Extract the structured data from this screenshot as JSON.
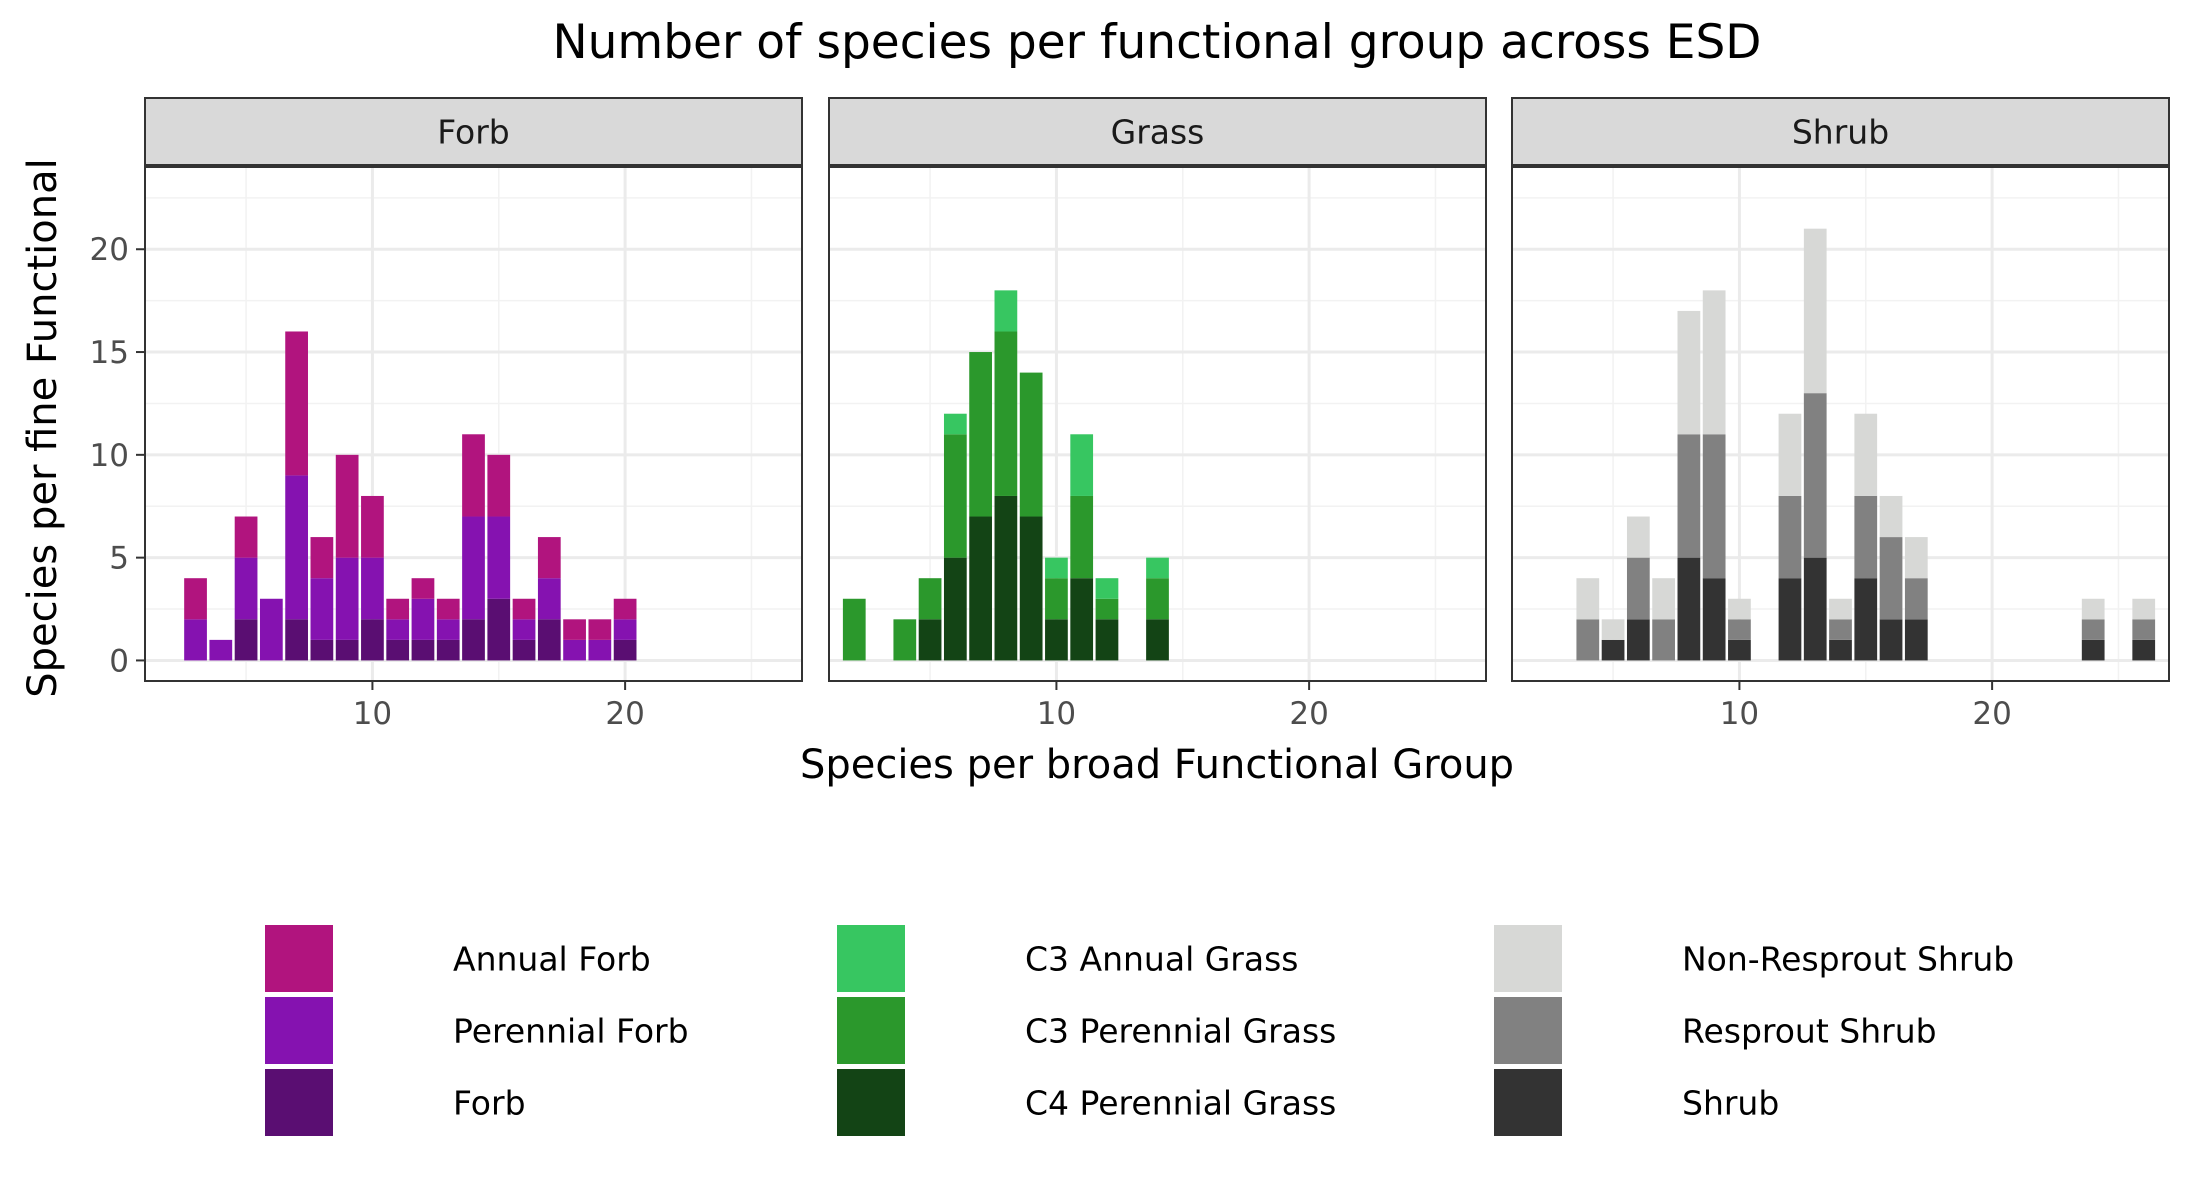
{
  "chart_data": {
    "type": "bar",
    "stacked": true,
    "title": "Number of species per functional group across ESD",
    "xlabel": "Species per broad Functional Group",
    "ylabel": "Species per fine Functional",
    "xlim": [
      1,
      27
    ],
    "ylim": [
      -1,
      24
    ],
    "x_ticks": [
      10,
      20
    ],
    "y_ticks": [
      0,
      5,
      10,
      15,
      20
    ],
    "grid": true,
    "legend_position": "bottom",
    "panels": [
      {
        "label": "Forb",
        "series": [
          {
            "name": "Forb",
            "color": "#5a0e72",
            "points": [
              [
                5,
                2
              ],
              [
                7,
                2
              ],
              [
                8,
                1
              ],
              [
                9,
                1
              ],
              [
                10,
                2
              ],
              [
                11,
                1
              ],
              [
                12,
                1
              ],
              [
                13,
                1
              ],
              [
                14,
                2
              ],
              [
                15,
                3
              ],
              [
                16,
                1
              ],
              [
                17,
                2
              ],
              [
                20,
                1
              ]
            ]
          },
          {
            "name": "Perennial Forb",
            "color": "#8512b0",
            "points": [
              [
                3,
                2
              ],
              [
                4,
                1
              ],
              [
                5,
                3
              ],
              [
                6,
                3
              ],
              [
                7,
                7
              ],
              [
                8,
                3
              ],
              [
                9,
                4
              ],
              [
                10,
                3
              ],
              [
                11,
                1
              ],
              [
                12,
                2
              ],
              [
                13,
                1
              ],
              [
                14,
                5
              ],
              [
                15,
                4
              ],
              [
                16,
                1
              ],
              [
                17,
                2
              ],
              [
                18,
                1
              ],
              [
                19,
                1
              ],
              [
                20,
                1
              ]
            ]
          },
          {
            "name": "Annual Forb",
            "color": "#b1147e",
            "points": [
              [
                3,
                2
              ],
              [
                5,
                2
              ],
              [
                7,
                7
              ],
              [
                8,
                2
              ],
              [
                9,
                5
              ],
              [
                10,
                3
              ],
              [
                11,
                1
              ],
              [
                12,
                1
              ],
              [
                13,
                1
              ],
              [
                14,
                4
              ],
              [
                15,
                3
              ],
              [
                16,
                1
              ],
              [
                17,
                2
              ],
              [
                18,
                1
              ],
              [
                19,
                1
              ],
              [
                20,
                1
              ]
            ]
          }
        ]
      },
      {
        "label": "Grass",
        "series": [
          {
            "name": "C4 Perennial Grass",
            "color": "#134415",
            "points": [
              [
                5,
                2
              ],
              [
                6,
                5
              ],
              [
                7,
                7
              ],
              [
                8,
                8
              ],
              [
                9,
                7
              ],
              [
                10,
                2
              ],
              [
                11,
                4
              ],
              [
                12,
                2
              ],
              [
                14,
                2
              ]
            ]
          },
          {
            "name": "C3 Perennial Grass",
            "color": "#2b982c",
            "points": [
              [
                2,
                3
              ],
              [
                4,
                2
              ],
              [
                5,
                2
              ],
              [
                6,
                6
              ],
              [
                7,
                8
              ],
              [
                8,
                8
              ],
              [
                9,
                7
              ],
              [
                10,
                2
              ],
              [
                11,
                4
              ],
              [
                12,
                1
              ],
              [
                14,
                2
              ]
            ]
          },
          {
            "name": "C3 Annual Grass",
            "color": "#37c661",
            "points": [
              [
                6,
                1
              ],
              [
                8,
                2
              ],
              [
                10,
                1
              ],
              [
                11,
                3
              ],
              [
                12,
                1
              ],
              [
                14,
                1
              ]
            ]
          }
        ]
      },
      {
        "label": "Shrub",
        "series": [
          {
            "name": "Shrub",
            "color": "#333333",
            "points": [
              [
                5,
                1
              ],
              [
                6,
                2
              ],
              [
                8,
                5
              ],
              [
                9,
                4
              ],
              [
                10,
                1
              ],
              [
                12,
                4
              ],
              [
                13,
                5
              ],
              [
                14,
                1
              ],
              [
                15,
                4
              ],
              [
                16,
                2
              ],
              [
                17,
                2
              ],
              [
                24,
                1
              ],
              [
                26,
                1
              ]
            ]
          },
          {
            "name": "Resprout Shrub",
            "color": "#818181",
            "points": [
              [
                4,
                2
              ],
              [
                6,
                3
              ],
              [
                7,
                2
              ],
              [
                8,
                6
              ],
              [
                9,
                7
              ],
              [
                10,
                1
              ],
              [
                12,
                4
              ],
              [
                13,
                8
              ],
              [
                14,
                1
              ],
              [
                15,
                4
              ],
              [
                16,
                4
              ],
              [
                17,
                2
              ],
              [
                24,
                1
              ],
              [
                26,
                1
              ]
            ]
          },
          {
            "name": "Non-Resprout Shrub",
            "color": "#d7d8d6",
            "points": [
              [
                4,
                2
              ],
              [
                5,
                1
              ],
              [
                6,
                2
              ],
              [
                7,
                2
              ],
              [
                8,
                6
              ],
              [
                9,
                7
              ],
              [
                10,
                1
              ],
              [
                12,
                4
              ],
              [
                13,
                8
              ],
              [
                14,
                1
              ],
              [
                15,
                4
              ],
              [
                16,
                2
              ],
              [
                17,
                2
              ],
              [
                24,
                1
              ],
              [
                26,
                1
              ]
            ]
          }
        ]
      }
    ],
    "legend": [
      {
        "name": "Annual Forb",
        "color": "#b1147e"
      },
      {
        "name": "Perennial Forb",
        "color": "#8512b0"
      },
      {
        "name": "Forb",
        "color": "#5a0e72"
      },
      {
        "name": "C3 Annual Grass",
        "color": "#37c661"
      },
      {
        "name": "C3 Perennial Grass",
        "color": "#2b982c"
      },
      {
        "name": "C4 Perennial Grass",
        "color": "#134415"
      },
      {
        "name": "Non-Resprout Shrub",
        "color": "#d7d8d6"
      },
      {
        "name": "Resprout Shrub",
        "color": "#818181"
      },
      {
        "name": "Shrub",
        "color": "#333333"
      }
    ]
  }
}
